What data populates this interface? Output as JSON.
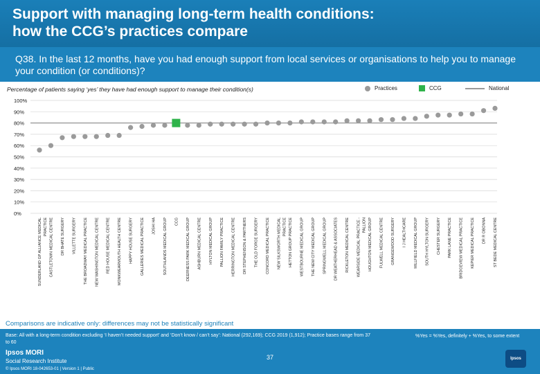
{
  "header": {
    "title": "Support with managing long-term health conditions:\nhow the CCG’s practices compare",
    "question": "Q38. In the last 12 months, have you had enough support from local services or organisations to help you to manage your condition (or conditions)?"
  },
  "legend": {
    "practices": "Practices",
    "ccg": "CCG",
    "national": "National"
  },
  "chart_data": {
    "type": "scatter",
    "title": "Percentage of patients saying ‘yes’ they have had enough support to manage their condition(s)",
    "ylim": [
      0,
      100
    ],
    "ytick_labels": [
      "0%",
      "10%",
      "20%",
      "30%",
      "40%",
      "50%",
      "60%",
      "70%",
      "80%",
      "90%",
      "100%"
    ],
    "national": 80,
    "colors": {
      "practice": "#9a9a9a",
      "ccg": "#2fb34a",
      "national": "#9a9a9a"
    },
    "categories": [
      "SUNDERLAND GP ALLIANCE MEDICAL PRACTICE",
      "CASTLETOWN MEDICAL CENTRE",
      "DR BHATE SURGERY",
      "VILLETTE SURGERY",
      "THE BROADWAY MEDICAL PRACTICE",
      "NEW WASHINGTON MEDICAL CENTRE",
      "RED HOUSE MEDICAL CENTRE",
      "MONKWEARMOUTH HEALTH CENTRE",
      "HAPPY HOUSE SURGERY",
      "GALLERIES MEDICAL PRACTICE",
      "JOSHI HA",
      "SOUTHLANDS MEDICAL GROUP",
      "CCG",
      "DEERNESS PARK MEDICAL GROUP",
      "ASHBURN MEDICAL CENTRE",
      "HYLTON MEDICAL GROUP",
      "PALLION FAMILY PRACTICE",
      "HERRINGTON MEDICAL CENTRE",
      "DR STEPHENSON & PARTNERS",
      "THE OLD FORGE SURGERY",
      "CONCORD MEDICAL PRACTICE",
      "NEW SILKSWORTH MEDICAL PRACTICE",
      "HETTON GROUP PRACTICE",
      "WESTBOURNE MEDICAL GROUP",
      "THE NEW CITY MEDICAL GROUP",
      "SPRINGWELL MEDICAL GROUP",
      "DR WEATHERHEAD & ASSOCIATES",
      "RICKLETON MEDICAL CENTRE",
      "WEARSIDE MEDICAL PRACTICE - PALLION",
      "HOUGHTON MEDICAL GROUP",
      "FULWELL MEDICAL CENTRE",
      "GRANGEWOOD SURGERY",
      "I J HEALTHCARE",
      "MILLFIELD MEDICAL GROUP",
      "SOUTH HYLTON SURGERY",
      "CHESTER SURGERY",
      "PARK LANE PRACTICE",
      "BRIDGEVIEW MEDICAL PRACTICE",
      "KEPIER MEDICAL PRACTICE",
      "DR R OBONNA",
      "ST BEDE MEDICAL CENTRE"
    ],
    "values": [
      56,
      60,
      67,
      68,
      68,
      68,
      69,
      69,
      76,
      77,
      78,
      78,
      80,
      78,
      78,
      79,
      79,
      79,
      79,
      79,
      80,
      80,
      80,
      81,
      81,
      81,
      81,
      82,
      82,
      82,
      83,
      83,
      84,
      84,
      86,
      87,
      87,
      88,
      88,
      91,
      93
    ],
    "ccg_index": 12
  },
  "disclaimer": "Comparisons are indicative only: differences may not be statistically significant",
  "footer": {
    "base": "Base: All with a long-term condition excluding ‘I haven’t needed support’ and ‘Don’t know / can’t say’: National (292,169); CCG 2019 (1,912); Practice bases range from 37 to 60",
    "note": "%Yes = %Yes, definitely + %Yes, to some extent",
    "page": "37",
    "logo": "Ipsos MORI",
    "logo_sub": "Social Research Institute",
    "copyright": "© Ipsos MORI     18-042653-01 | Version 1 | Public",
    "ipsos_mark": "Ipsos"
  }
}
